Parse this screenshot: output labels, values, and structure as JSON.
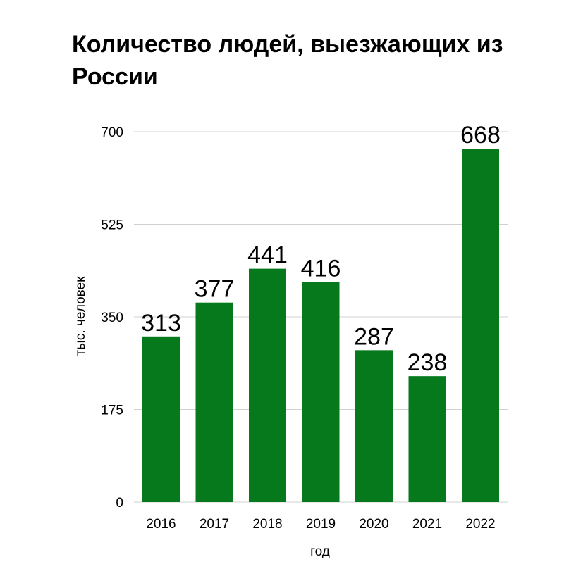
{
  "chart_data": {
    "type": "bar",
    "title": "Количество людей, выезжающих из России",
    "xlabel": "год",
    "ylabel": "тыс. человек",
    "categories": [
      "2016",
      "2017",
      "2018",
      "2019",
      "2020",
      "2021",
      "2022"
    ],
    "values": [
      313,
      377,
      441,
      416,
      287,
      238,
      668
    ],
    "data_labels": [
      "313",
      "377",
      "441",
      "416",
      "287",
      "238",
      "668"
    ],
    "ylim": [
      0,
      700
    ],
    "yticks": [
      0,
      175,
      350,
      525,
      700
    ],
    "ytick_labels": [
      "0",
      "175",
      "350",
      "525",
      "700"
    ],
    "grid": true,
    "bar_color": "#05791c",
    "grid_color": "#d0d0d0"
  }
}
